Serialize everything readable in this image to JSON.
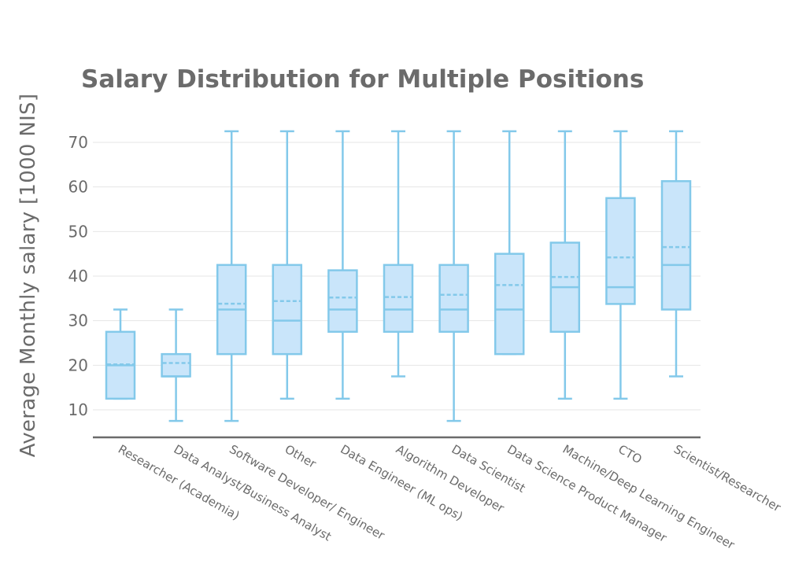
{
  "chart_data": {
    "type": "box",
    "title": "Salary Distribution for Multiple Positions",
    "xlabel": "",
    "ylabel": "Average Monthly salary [1000 NIS]",
    "ylim": [
      4,
      76
    ],
    "yticks": [
      10,
      20,
      30,
      40,
      50,
      60,
      70
    ],
    "grid": true,
    "legend": "none",
    "colors": {
      "box_fill": "#c9e5fa",
      "box_stroke": "#83c9ea",
      "grid": "#e6e6e6",
      "axis": "#6b6b6b",
      "text": "#6b6b6b"
    },
    "categories": [
      "Researcher (Academia)",
      "Data Analyst/Business Analyst",
      "Software Developer/ Engineer",
      "Other",
      "Data Engineer (ML ops)",
      "Algorithm Developer",
      "Data Scientist",
      "Data Science Product Manager",
      "Machine/Deep Learning Engineer",
      "CTO",
      "Scientist/Researcher"
    ],
    "boxes": [
      {
        "min": 12.5,
        "q1": 12.5,
        "median": 20,
        "q3": 27.5,
        "max": 32.5,
        "mean": 20.2
      },
      {
        "min": 7.5,
        "q1": 17.5,
        "median": 17.5,
        "q3": 22.5,
        "max": 32.5,
        "mean": 20.5
      },
      {
        "min": 7.5,
        "q1": 22.5,
        "median": 32.5,
        "q3": 42.5,
        "max": 72.5,
        "mean": 33.8
      },
      {
        "min": 12.5,
        "q1": 22.5,
        "median": 30,
        "q3": 42.5,
        "max": 72.5,
        "mean": 34.4
      },
      {
        "min": 12.5,
        "q1": 27.5,
        "median": 32.5,
        "q3": 41.3,
        "max": 72.5,
        "mean": 35.2
      },
      {
        "min": 17.5,
        "q1": 27.5,
        "median": 32.5,
        "q3": 42.5,
        "max": 72.5,
        "mean": 35.3
      },
      {
        "min": 7.5,
        "q1": 27.5,
        "median": 32.5,
        "q3": 42.5,
        "max": 72.5,
        "mean": 35.8
      },
      {
        "min": 22.5,
        "q1": 22.5,
        "median": 32.5,
        "q3": 45,
        "max": 72.5,
        "mean": 38
      },
      {
        "min": 12.5,
        "q1": 27.5,
        "median": 37.5,
        "q3": 47.5,
        "max": 72.5,
        "mean": 39.8
      },
      {
        "min": 12.5,
        "q1": 33.75,
        "median": 37.5,
        "q3": 57.5,
        "max": 72.5,
        "mean": 44.2
      },
      {
        "min": 17.5,
        "q1": 32.5,
        "median": 42.5,
        "q3": 61.3,
        "max": 72.5,
        "mean": 46.5
      }
    ]
  }
}
